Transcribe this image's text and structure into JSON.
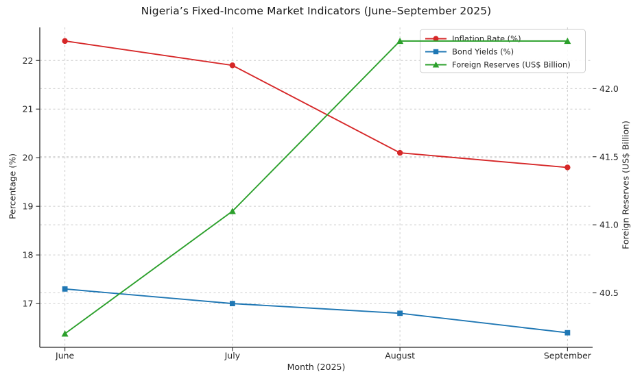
{
  "figure": {
    "title": "Nigeria’s Fixed-Income Market Indicators (June–September 2025)"
  },
  "chart_data": {
    "type": "line",
    "title": "Nigeria’s Fixed-Income Market Indicators (June–September 2025)",
    "xlabel": "Month (2025)",
    "ylabel_left": "Percentage (%)",
    "ylabel_right": "Foreign Reserves (US$ Billion)",
    "categories": [
      "June",
      "July",
      "August",
      "September"
    ],
    "series": [
      {
        "name": "Inflation Rate (%)",
        "axis": "left",
        "color": "#d62728",
        "marker": "circle",
        "values": [
          22.4,
          21.9,
          20.1,
          19.8
        ]
      },
      {
        "name": "Bond Yields (%)",
        "axis": "left",
        "color": "#1f77b4",
        "marker": "square",
        "values": [
          17.3,
          17.0,
          16.8,
          16.4
        ]
      },
      {
        "name": "Foreign Reserves (US$ Billion)",
        "axis": "right",
        "color": "#2ca02c",
        "marker": "triangle",
        "values": [
          40.2,
          41.1,
          42.35,
          42.35
        ]
      }
    ],
    "left_axis": {
      "tick_values": [
        17,
        18,
        19,
        20,
        21,
        22
      ],
      "tick_labels": [
        "17",
        "18",
        "19",
        "20",
        "21",
        "22"
      ],
      "lim": [
        16.1,
        22.68
      ]
    },
    "right_axis": {
      "tick_values": [
        40.5,
        41.0,
        41.5,
        42.0
      ],
      "tick_labels": [
        "40.5",
        "41.0",
        "41.5",
        "42.0"
      ],
      "lim": [
        40.1,
        42.45
      ]
    },
    "x_margin": 0.15,
    "grid": true,
    "grid_style": "dashed",
    "legend": {
      "position": "top-right",
      "items": [
        "Inflation Rate (%)",
        "Bond Yields (%)",
        "Foreign Reserves (US$ Billion)"
      ]
    },
    "colors": {
      "grid": "#cccccc",
      "spine": "#262626",
      "text": "#262626",
      "legend_border": "#cccccc",
      "legend_bg": "#ffffff"
    }
  }
}
